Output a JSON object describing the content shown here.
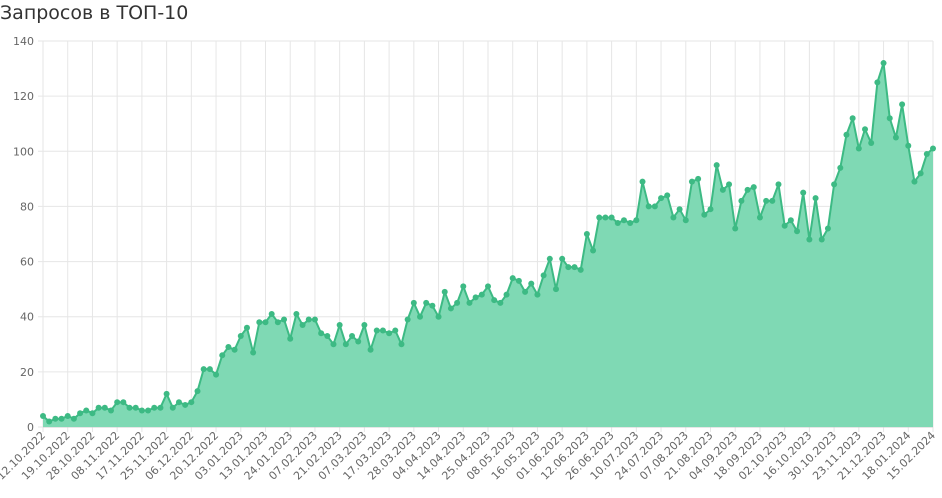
{
  "chart_data": {
    "type": "area",
    "title": "Запросов в ТОП-10",
    "ylim": [
      0,
      140
    ],
    "y_ticks": [
      "0",
      "20",
      "40",
      "60",
      "80",
      "100",
      "120",
      "140"
    ],
    "x_tick_labels": [
      "12.10.2022",
      "19.10.2022",
      "28.10.2022",
      "08.11.2022",
      "17.11.2022",
      "25.11.2022",
      "06.12.2022",
      "20.12.2022",
      "03.01.2023",
      "13.01.2023",
      "24.01.2023",
      "07.02.2023",
      "21.02.2023",
      "07.03.2023",
      "17.03.2023",
      "28.03.2023",
      "04.04.2023",
      "14.04.2023",
      "25.04.2023",
      "08.05.2023",
      "16.05.2023",
      "01.06.2023",
      "12.06.2023",
      "26.06.2023",
      "10.07.2023",
      "24.07.2023",
      "07.08.2023",
      "21.08.2023",
      "04.09.2023",
      "18.09.2023",
      "02.10.2023",
      "16.10.2023",
      "30.10.2023",
      "23.11.2023",
      "21.12.2023",
      "18.01.2024",
      "15.02.2024"
    ],
    "grid": true,
    "legend": "none",
    "colors": {
      "line": "#3dba84",
      "fill": "#7fd9b4",
      "point": "#3dba84",
      "grid": "#e6e6e6"
    },
    "values": [
      4,
      2,
      3,
      3,
      4,
      3,
      5,
      6,
      5,
      7,
      7,
      6,
      9,
      9,
      7,
      7,
      6,
      6,
      7,
      7,
      12,
      7,
      9,
      8,
      9,
      13,
      21,
      21,
      19,
      26,
      29,
      28,
      33,
      36,
      27,
      38,
      38,
      41,
      38,
      39,
      32,
      41,
      37,
      39,
      39,
      34,
      33,
      30,
      37,
      30,
      33,
      31,
      37,
      28,
      35,
      35,
      34,
      35,
      30,
      39,
      45,
      40,
      45,
      44,
      40,
      49,
      43,
      45,
      51,
      45,
      47,
      48,
      51,
      46,
      45,
      48,
      54,
      53,
      49,
      52,
      48,
      55,
      61,
      50,
      61,
      58,
      58,
      57,
      70,
      64,
      76,
      76,
      76,
      74,
      75,
      74,
      75,
      89,
      80,
      80,
      83,
      84,
      76,
      79,
      75,
      89,
      90,
      77,
      79,
      95,
      86,
      88,
      72,
      82,
      86,
      87,
      76,
      82,
      82,
      88,
      73,
      75,
      71,
      85,
      68,
      83,
      68,
      72,
      88,
      94,
      106,
      112,
      101,
      108,
      103,
      125,
      132,
      112,
      105,
      117,
      102,
      89,
      92,
      99,
      101
    ]
  }
}
